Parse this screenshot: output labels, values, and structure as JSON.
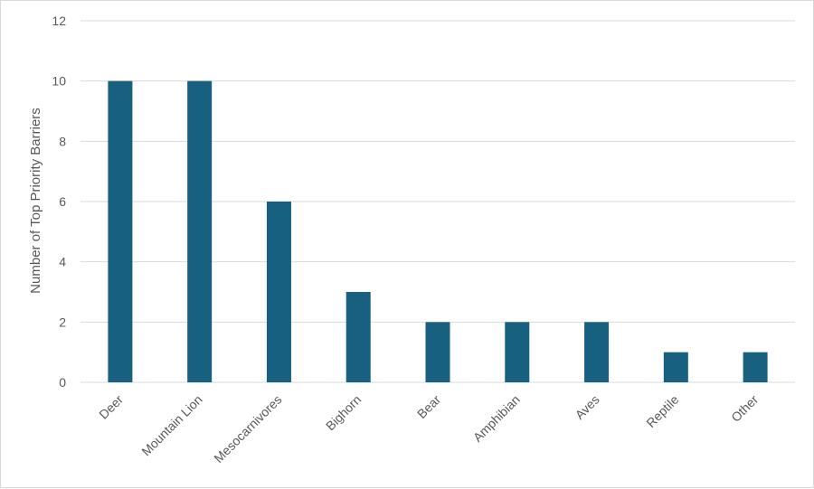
{
  "chart_data": {
    "type": "bar",
    "title": "",
    "xlabel": "",
    "ylabel": "Number of Top Priority Barriers",
    "categories": [
      "Deer",
      "Mountain Lion",
      "Mesocarnivores",
      "Bighorn",
      "Bear",
      "Amphibian",
      "Aves",
      "Reptile",
      "Other"
    ],
    "values": [
      10,
      10,
      6,
      3,
      2,
      2,
      2,
      1,
      1
    ],
    "ylim": [
      0,
      12
    ],
    "yticks": [
      0,
      2,
      4,
      6,
      8,
      10,
      12
    ],
    "grid": true,
    "legend": "none",
    "bar_color": "#17607f",
    "grid_color": "#d9d9d9",
    "text_color": "#595959"
  }
}
